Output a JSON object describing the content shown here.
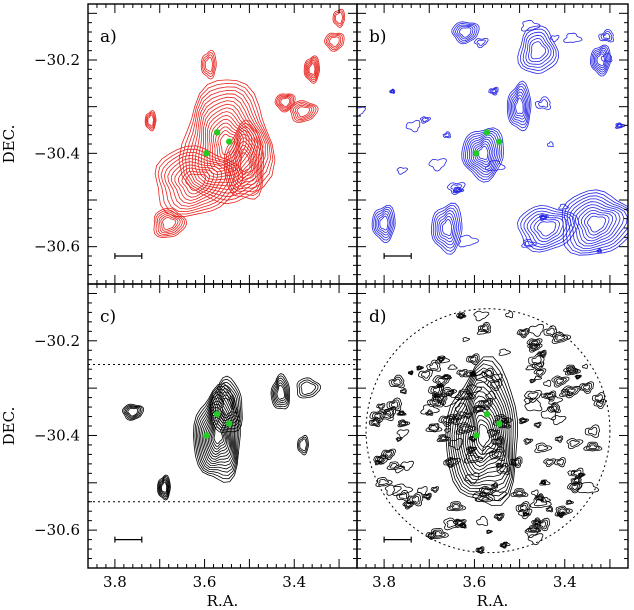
{
  "chart_data": {
    "type": "contour",
    "xlabel": "R.A.",
    "ylabel": "DEC.",
    "xlim": [
      3.86,
      3.26
    ],
    "ylim": [
      -30.68,
      -30.08
    ],
    "x_ticks": [
      "3.8",
      "3.6",
      "3.4"
    ],
    "y_ticks": [
      "-30.2",
      "-30.4",
      "-30.6"
    ],
    "panels": [
      {
        "label": "a)",
        "contour_color": "#e8231e",
        "marker_color": "#22cc22",
        "sources": [
          {
            "ra": 3.55,
            "dec": -30.38,
            "peak": 1.0,
            "size": 0.05,
            "levels": 16
          },
          {
            "ra": 3.51,
            "dec": -30.42,
            "peak": 0.7,
            "size": 0.03,
            "levels": 10
          },
          {
            "ra": 3.62,
            "dec": -30.46,
            "peak": 0.7,
            "size": 0.035,
            "levels": 10
          },
          {
            "ra": 3.68,
            "dec": -30.55,
            "peak": 0.5,
            "size": 0.012,
            "levels": 6
          },
          {
            "ra": 3.36,
            "dec": -30.22,
            "peak": 0.5,
            "size": 0.012,
            "levels": 6
          },
          {
            "ra": 3.42,
            "dec": -30.29,
            "peak": 0.45,
            "size": 0.01,
            "levels": 5
          },
          {
            "ra": 3.38,
            "dec": -30.31,
            "peak": 0.45,
            "size": 0.01,
            "levels": 5
          },
          {
            "ra": 3.72,
            "dec": -30.33,
            "peak": 0.35,
            "size": 0.008,
            "levels": 4
          },
          {
            "ra": 3.59,
            "dec": -30.21,
            "peak": 0.35,
            "size": 0.012,
            "levels": 4
          },
          {
            "ra": 3.31,
            "dec": -30.16,
            "peak": 0.35,
            "size": 0.01,
            "levels": 4
          },
          {
            "ra": 3.3,
            "dec": -30.11,
            "peak": 0.3,
            "size": 0.008,
            "levels": 3
          }
        ]
      },
      {
        "label": "b)",
        "contour_color": "#2424e6",
        "marker_color": "#22cc22",
        "sources": [
          {
            "ra": 3.58,
            "dec": -30.4,
            "peak": 0.8,
            "size": 0.03,
            "levels": 10
          },
          {
            "ra": 3.5,
            "dec": -30.3,
            "peak": 0.6,
            "size": 0.02,
            "levels": 7
          },
          {
            "ra": 3.33,
            "dec": -30.55,
            "peak": 0.8,
            "size": 0.03,
            "levels": 10
          },
          {
            "ra": 3.44,
            "dec": -30.56,
            "peak": 0.6,
            "size": 0.025,
            "levels": 7
          },
          {
            "ra": 3.66,
            "dec": -30.56,
            "peak": 0.6,
            "size": 0.025,
            "levels": 7
          },
          {
            "ra": 3.8,
            "dec": -30.55,
            "peak": 0.5,
            "size": 0.018,
            "levels": 6
          },
          {
            "ra": 3.46,
            "dec": -30.18,
            "peak": 0.5,
            "size": 0.018,
            "levels": 6
          },
          {
            "ra": 3.32,
            "dec": -30.2,
            "peak": 0.5,
            "size": 0.015,
            "levels": 6
          },
          {
            "ra": 3.62,
            "dec": -30.14,
            "peak": 0.4,
            "size": 0.012,
            "levels": 5
          }
        ]
      },
      {
        "label": "c)",
        "contour_color": "#000000",
        "marker_color": "#22cc22",
        "dotted_lines_dec": [
          -30.25,
          -30.54
        ],
        "sources": [
          {
            "ra": 3.57,
            "dec": -30.4,
            "peak": 1.0,
            "size": 0.04,
            "levels": 15
          },
          {
            "ra": 3.55,
            "dec": -30.34,
            "peak": 0.6,
            "size": 0.02,
            "levels": 8
          },
          {
            "ra": 3.43,
            "dec": -30.31,
            "peak": 0.5,
            "size": 0.012,
            "levels": 6
          },
          {
            "ra": 3.69,
            "dec": -30.51,
            "peak": 0.5,
            "size": 0.01,
            "levels": 6
          },
          {
            "ra": 3.76,
            "dec": -30.35,
            "peak": 0.4,
            "size": 0.008,
            "levels": 5
          },
          {
            "ra": 3.37,
            "dec": -30.3,
            "peak": 0.3,
            "size": 0.008,
            "levels": 3
          },
          {
            "ra": 3.38,
            "dec": -30.42,
            "peak": 0.3,
            "size": 0.008,
            "levels": 3
          }
        ]
      },
      {
        "label": "d)",
        "contour_color": "#000000",
        "marker_color": "#22cc22",
        "circle_center": [
          3.57,
          -30.39
        ],
        "circle_radius_deg": 0.27,
        "sources": [
          {
            "ra": 3.58,
            "dec": -30.4,
            "peak": 1.0,
            "size": 0.06,
            "levels": 16
          }
        ]
      }
    ],
    "markers": [
      {
        "ra": 3.596,
        "dec": -30.4
      },
      {
        "ra": 3.572,
        "dec": -30.355
      },
      {
        "ra": 3.545,
        "dec": -30.375
      }
    ],
    "scale_bar_ra": [
      3.8,
      3.74
    ],
    "scale_bar_dec": -30.62
  }
}
